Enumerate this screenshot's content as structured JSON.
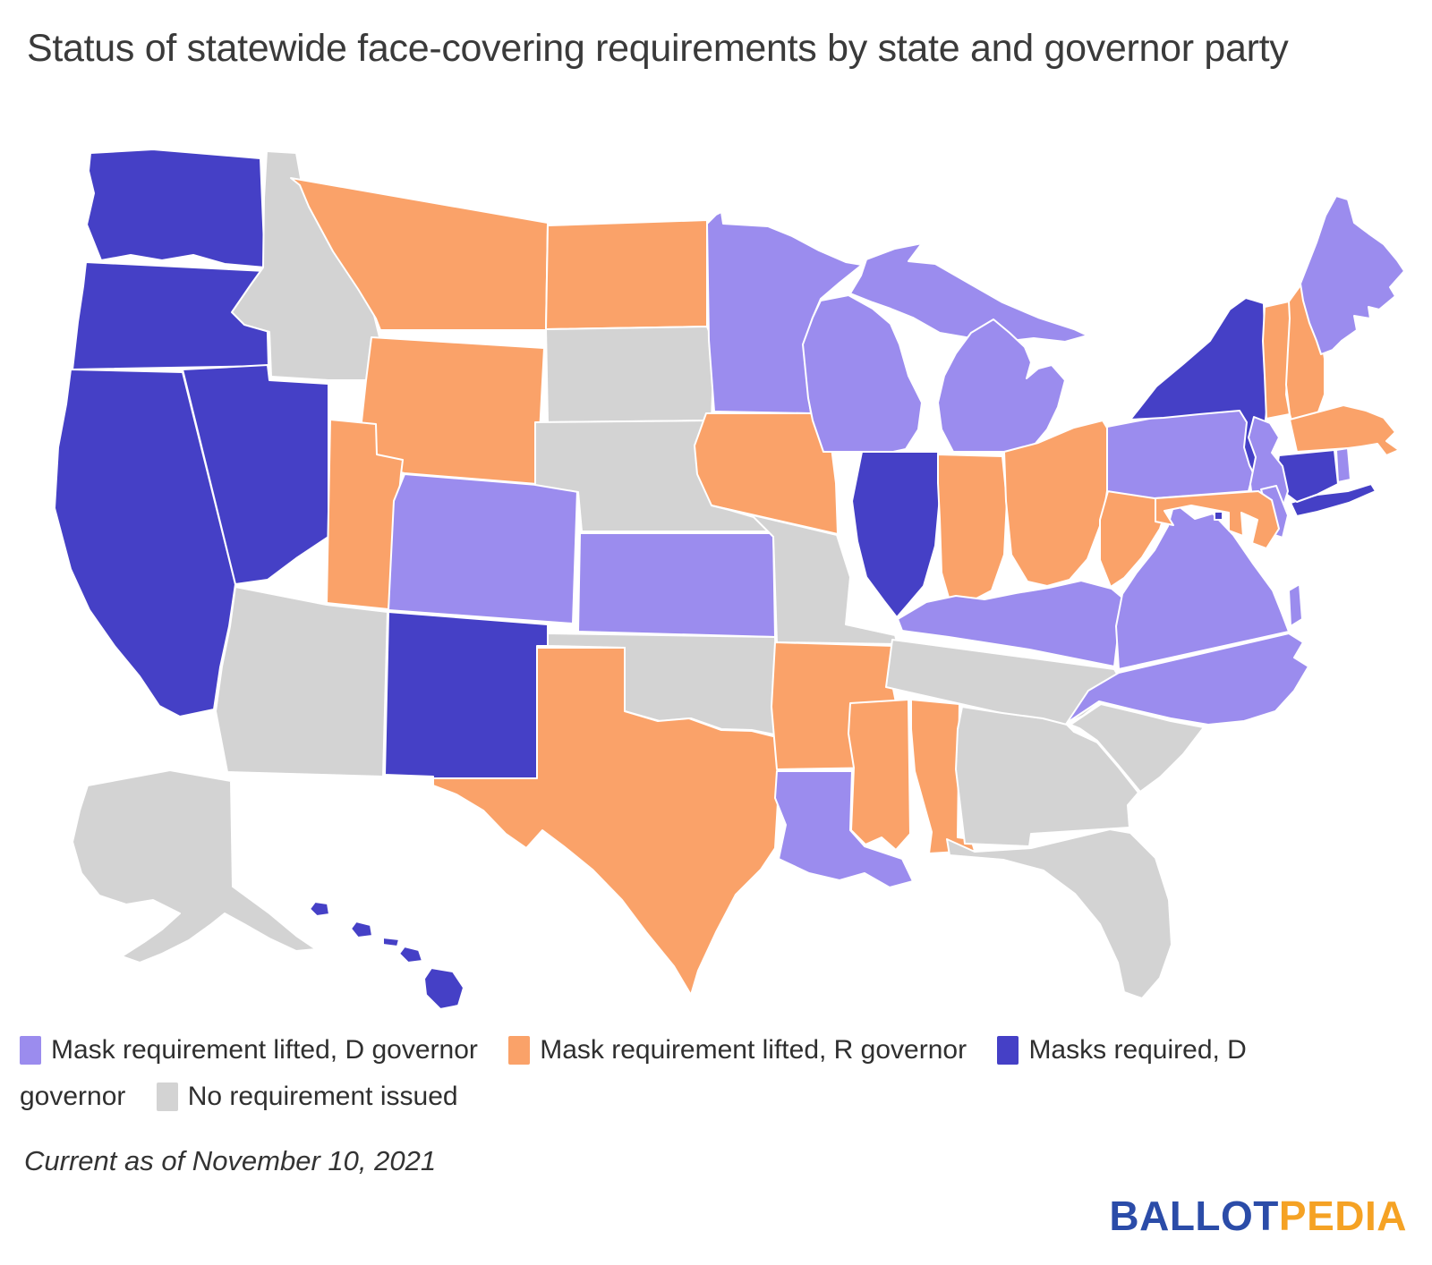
{
  "title": "Status of statewide face-covering requirements by state and governor party",
  "footer": {
    "note": "Current as of November 10, 2021",
    "logo": {
      "part1": "BALLOT",
      "part2": "PEDIA",
      "part1_color": "#2B4CA8",
      "part2_color": "#F5A224"
    }
  },
  "map": {
    "categories": {
      "lifted_d": {
        "label": "Mask requirement lifted, D governor",
        "color": "#9B8CEE"
      },
      "lifted_r": {
        "label": "Mask requirement lifted, R governor",
        "color": "#FAA269"
      },
      "required_d": {
        "label": "Masks required, D governor",
        "color": "#4540C6"
      },
      "none": {
        "label": "No requirement issued",
        "color": "#D3D3D3"
      }
    },
    "states": [
      {
        "id": "WA",
        "name": "Washington",
        "category": "required_d"
      },
      {
        "id": "OR",
        "name": "Oregon",
        "category": "required_d"
      },
      {
        "id": "CA",
        "name": "California",
        "category": "required_d"
      },
      {
        "id": "NV",
        "name": "Nevada",
        "category": "required_d"
      },
      {
        "id": "ID",
        "name": "Idaho",
        "category": "none"
      },
      {
        "id": "MT",
        "name": "Montana",
        "category": "lifted_r"
      },
      {
        "id": "WY",
        "name": "Wyoming",
        "category": "lifted_r"
      },
      {
        "id": "UT",
        "name": "Utah",
        "category": "lifted_r"
      },
      {
        "id": "AZ",
        "name": "Arizona",
        "category": "none"
      },
      {
        "id": "NM",
        "name": "New Mexico",
        "category": "required_d"
      },
      {
        "id": "CO",
        "name": "Colorado",
        "category": "lifted_d"
      },
      {
        "id": "ND",
        "name": "North Dakota",
        "category": "lifted_r"
      },
      {
        "id": "SD",
        "name": "South Dakota",
        "category": "none"
      },
      {
        "id": "NE",
        "name": "Nebraska",
        "category": "none"
      },
      {
        "id": "KS",
        "name": "Kansas",
        "category": "lifted_d"
      },
      {
        "id": "OK",
        "name": "Oklahoma",
        "category": "none"
      },
      {
        "id": "TX",
        "name": "Texas",
        "category": "lifted_r"
      },
      {
        "id": "MN",
        "name": "Minnesota",
        "category": "lifted_d"
      },
      {
        "id": "IA",
        "name": "Iowa",
        "category": "lifted_r"
      },
      {
        "id": "MO",
        "name": "Missouri",
        "category": "none"
      },
      {
        "id": "AR",
        "name": "Arkansas",
        "category": "lifted_r"
      },
      {
        "id": "LA",
        "name": "Louisiana",
        "category": "lifted_d"
      },
      {
        "id": "WI",
        "name": "Wisconsin",
        "category": "lifted_d"
      },
      {
        "id": "IL",
        "name": "Illinois",
        "category": "required_d"
      },
      {
        "id": "MI",
        "name": "Michigan",
        "category": "lifted_d"
      },
      {
        "id": "IN",
        "name": "Indiana",
        "category": "lifted_r"
      },
      {
        "id": "OH",
        "name": "Ohio",
        "category": "lifted_r"
      },
      {
        "id": "KY",
        "name": "Kentucky",
        "category": "lifted_d"
      },
      {
        "id": "TN",
        "name": "Tennessee",
        "category": "none"
      },
      {
        "id": "MS",
        "name": "Mississippi",
        "category": "lifted_r"
      },
      {
        "id": "AL",
        "name": "Alabama",
        "category": "lifted_r"
      },
      {
        "id": "GA",
        "name": "Georgia",
        "category": "none"
      },
      {
        "id": "FL",
        "name": "Florida",
        "category": "none"
      },
      {
        "id": "SC",
        "name": "South Carolina",
        "category": "none"
      },
      {
        "id": "NC",
        "name": "North Carolina",
        "category": "lifted_d"
      },
      {
        "id": "VA",
        "name": "Virginia",
        "category": "lifted_d"
      },
      {
        "id": "WV",
        "name": "West Virginia",
        "category": "lifted_r"
      },
      {
        "id": "PA",
        "name": "Pennsylvania",
        "category": "lifted_d"
      },
      {
        "id": "NY",
        "name": "New York",
        "category": "required_d"
      },
      {
        "id": "VT",
        "name": "Vermont",
        "category": "lifted_r"
      },
      {
        "id": "NH",
        "name": "New Hampshire",
        "category": "lifted_r"
      },
      {
        "id": "ME",
        "name": "Maine",
        "category": "lifted_d"
      },
      {
        "id": "MA",
        "name": "Massachusetts",
        "category": "lifted_r"
      },
      {
        "id": "RI",
        "name": "Rhode Island",
        "category": "lifted_d"
      },
      {
        "id": "CT",
        "name": "Connecticut",
        "category": "required_d"
      },
      {
        "id": "NJ",
        "name": "New Jersey",
        "category": "lifted_d"
      },
      {
        "id": "DE",
        "name": "Delaware",
        "category": "lifted_d"
      },
      {
        "id": "MD",
        "name": "Maryland",
        "category": "lifted_r"
      },
      {
        "id": "AK",
        "name": "Alaska",
        "category": "none"
      },
      {
        "id": "HI",
        "name": "Hawaii",
        "category": "required_d"
      },
      {
        "id": "DC",
        "name": "Washington, D.C.",
        "category": "required_d"
      }
    ]
  }
}
